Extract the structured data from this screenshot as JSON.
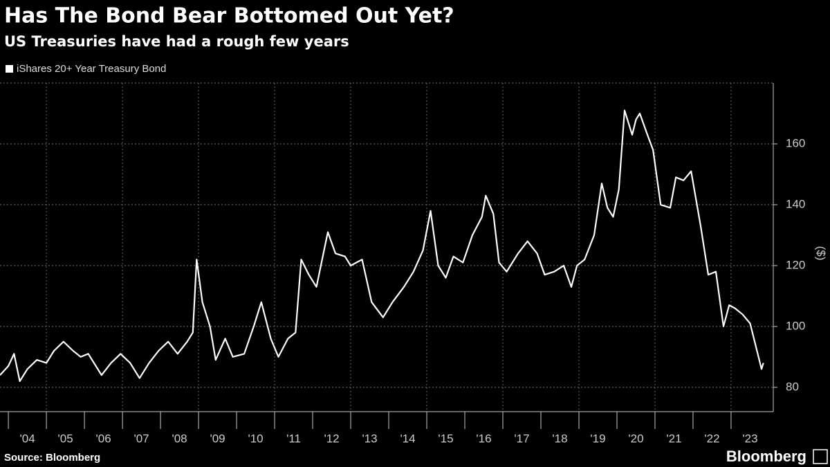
{
  "chart_data": {
    "type": "line",
    "title": "Has The Bond Bear Bottomed Out Yet?",
    "subtitle": "US Treasuries have had a rough few years",
    "y_label": "($)",
    "x": [
      2003.78,
      2004.0,
      2004.15,
      2004.3,
      2004.5,
      2004.75,
      2005.0,
      2005.2,
      2005.45,
      2005.7,
      2005.9,
      2006.1,
      2006.3,
      2006.45,
      2006.7,
      2006.95,
      2007.2,
      2007.45,
      2007.7,
      2007.95,
      2008.2,
      2008.45,
      2008.7,
      2008.85,
      2008.95,
      2009.1,
      2009.3,
      2009.45,
      2009.7,
      2009.9,
      2010.2,
      2010.45,
      2010.65,
      2010.9,
      2011.1,
      2011.35,
      2011.55,
      2011.7,
      2011.9,
      2012.1,
      2012.4,
      2012.6,
      2012.85,
      2013.0,
      2013.3,
      2013.55,
      2013.85,
      2014.1,
      2014.4,
      2014.65,
      2014.9,
      2015.1,
      2015.3,
      2015.5,
      2015.7,
      2015.95,
      2016.2,
      2016.45,
      2016.55,
      2016.75,
      2016.9,
      2017.1,
      2017.4,
      2017.65,
      2017.9,
      2018.1,
      2018.35,
      2018.6,
      2018.8,
      2018.95,
      2019.15,
      2019.4,
      2019.6,
      2019.75,
      2019.9,
      2020.05,
      2020.2,
      2020.4,
      2020.5,
      2020.6,
      2020.8,
      2020.95,
      2021.15,
      2021.4,
      2021.55,
      2021.75,
      2021.95,
      2022.2,
      2022.4,
      2022.6,
      2022.8,
      2022.95,
      2023.1,
      2023.3,
      2023.5,
      2023.7,
      2023.8,
      2023.85
    ],
    "series": [
      {
        "name": "iShares 20+ Year Treasury Bond",
        "color": "#ffffff",
        "values": [
          84,
          87,
          91,
          82,
          86,
          89,
          88,
          92,
          95,
          92,
          90,
          91,
          87,
          84,
          88,
          91,
          88,
          83,
          88,
          92,
          95,
          91,
          95,
          98,
          122,
          108,
          100,
          89,
          96,
          90,
          91,
          100,
          108,
          96,
          90,
          96,
          98,
          122,
          117,
          113,
          131,
          124,
          123,
          120,
          122,
          108,
          103,
          108,
          113,
          118,
          125,
          138,
          120,
          116,
          123,
          121,
          130,
          136,
          143,
          137,
          121,
          118,
          124,
          128,
          124,
          117,
          118,
          120,
          113,
          120,
          122,
          130,
          147,
          139,
          136,
          145,
          171,
          163,
          168,
          170,
          163,
          158,
          140,
          139,
          149,
          148,
          151,
          133,
          117,
          118,
          100,
          107,
          106,
          104,
          101,
          91,
          86,
          88
        ]
      }
    ],
    "xlim": [
      2003.78,
      2024.11
    ],
    "xticks": [
      {
        "value": 2004,
        "label": "'04"
      },
      {
        "value": 2005,
        "label": "'05"
      },
      {
        "value": 2006,
        "label": "'06"
      },
      {
        "value": 2007,
        "label": "'07"
      },
      {
        "value": 2008,
        "label": "'08"
      },
      {
        "value": 2009,
        "label": "'09"
      },
      {
        "value": 2010,
        "label": "'10"
      },
      {
        "value": 2011,
        "label": "'11"
      },
      {
        "value": 2012,
        "label": "'12"
      },
      {
        "value": 2013,
        "label": "'13"
      },
      {
        "value": 2014,
        "label": "'14"
      },
      {
        "value": 2015,
        "label": "'15"
      },
      {
        "value": 2016,
        "label": "'16"
      },
      {
        "value": 2017,
        "label": "'17"
      },
      {
        "value": 2018,
        "label": "'18"
      },
      {
        "value": 2019,
        "label": "'19"
      },
      {
        "value": 2020,
        "label": "'20"
      },
      {
        "value": 2021,
        "label": "'21"
      },
      {
        "value": 2022,
        "label": "'22"
      },
      {
        "value": 2023,
        "label": "'23"
      }
    ],
    "ylim": [
      72,
      180
    ],
    "yticks": [
      80,
      100,
      120,
      140,
      160
    ],
    "grid": true
  },
  "footer": {
    "source": "Source: Bloomberg",
    "logo": "Bloomberg"
  }
}
